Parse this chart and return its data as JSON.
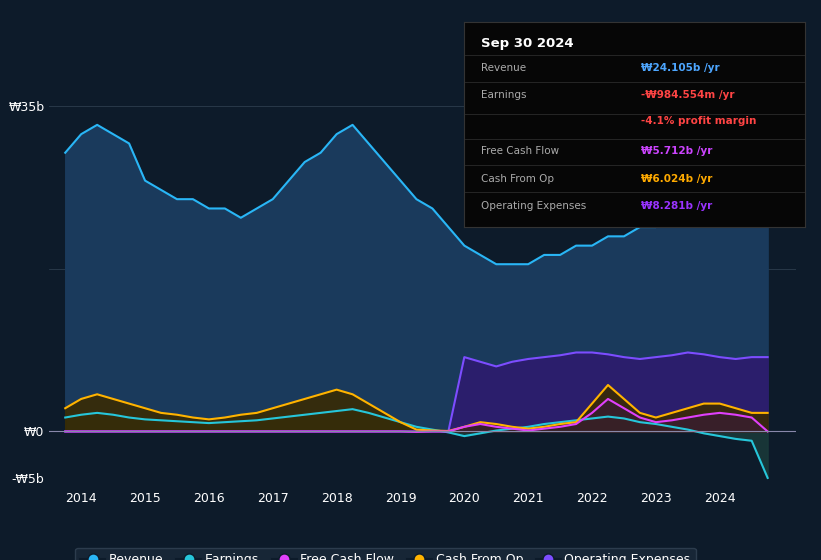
{
  "bg_color": "#0d1b2a",
  "plot_bg_color": "#0d1b2a",
  "info_box": {
    "title": "Sep 30 2024",
    "rows": [
      {
        "label": "Revenue",
        "value": "₩24.105b /yr",
        "value_color": "#4da6ff"
      },
      {
        "label": "Earnings",
        "value": "-₩984.554m /yr",
        "value_color": "#ff4444"
      },
      {
        "label": "",
        "value": "-4.1% profit margin",
        "value_color": "#ff4444"
      },
      {
        "label": "Free Cash Flow",
        "value": "₩5.712b /yr",
        "value_color": "#cc44ff"
      },
      {
        "label": "Cash From Op",
        "value": "₩6.024b /yr",
        "value_color": "#ffaa00"
      },
      {
        "label": "Operating Expenses",
        "value": "₩8.281b /yr",
        "value_color": "#9933ff"
      }
    ]
  },
  "ylim": [
    -6000000000.0,
    38000000000.0
  ],
  "ytick_labels": [
    "₩0",
    "₩35b",
    "-₩5b"
  ],
  "ytick_values": [
    0,
    35000000000.0,
    -5000000000.0
  ],
  "xlim_start": 2013.5,
  "xlim_end": 2025.2,
  "xtick_years": [
    2014,
    2015,
    2016,
    2017,
    2018,
    2019,
    2020,
    2021,
    2022,
    2023,
    2024
  ],
  "revenue_color": "#29b6f6",
  "revenue_fill": "#1a3a5c",
  "earnings_color": "#26c6da",
  "earnings_fill": "#1a3a3a",
  "fcf_color": "#e040fb",
  "fcf_fill": "#3a1a3a",
  "cashfromop_color": "#ffb300",
  "cashfromop_fill": "#3a2a00",
  "opex_color": "#7c4dff",
  "opex_fill": "#2d1b6e",
  "legend_items": [
    {
      "label": "Revenue",
      "color": "#29b6f6"
    },
    {
      "label": "Earnings",
      "color": "#26c6da"
    },
    {
      "label": "Free Cash Flow",
      "color": "#e040fb"
    },
    {
      "label": "Cash From Op",
      "color": "#ffb300"
    },
    {
      "label": "Operating Expenses",
      "color": "#7c4dff"
    }
  ],
  "revenue": {
    "x": [
      2013.75,
      2014.0,
      2014.25,
      2014.5,
      2014.75,
      2015.0,
      2015.25,
      2015.5,
      2015.75,
      2016.0,
      2016.25,
      2016.5,
      2016.75,
      2017.0,
      2017.25,
      2017.5,
      2017.75,
      2018.0,
      2018.25,
      2018.5,
      2018.75,
      2019.0,
      2019.25,
      2019.5,
      2019.75,
      2020.0,
      2020.25,
      2020.5,
      2020.75,
      2021.0,
      2021.25,
      2021.5,
      2021.75,
      2022.0,
      2022.25,
      2022.5,
      2022.75,
      2023.0,
      2023.25,
      2023.5,
      2023.75,
      2024.0,
      2024.25,
      2024.5,
      2024.75
    ],
    "y": [
      30000000000.0,
      32000000000.0,
      33000000000.0,
      32000000000.0,
      31000000000.0,
      27000000000.0,
      26000000000.0,
      25000000000.0,
      25000000000.0,
      24000000000.0,
      24000000000.0,
      23000000000.0,
      24000000000.0,
      25000000000.0,
      27000000000.0,
      29000000000.0,
      30000000000.0,
      32000000000.0,
      33000000000.0,
      31000000000.0,
      29000000000.0,
      27000000000.0,
      25000000000.0,
      24000000000.0,
      22000000000.0,
      20000000000.0,
      19000000000.0,
      18000000000.0,
      18000000000.0,
      18000000000.0,
      19000000000.0,
      19000000000.0,
      20000000000.0,
      20000000000.0,
      21000000000.0,
      21000000000.0,
      22000000000.0,
      22000000000.0,
      23000000000.0,
      23000000000.0,
      24000000000.0,
      24000000000.0,
      23000000000.0,
      24000000000.0,
      24000000000.0
    ]
  },
  "earnings": {
    "x": [
      2013.75,
      2014.0,
      2014.25,
      2014.5,
      2014.75,
      2015.0,
      2015.25,
      2015.5,
      2015.75,
      2016.0,
      2016.25,
      2016.5,
      2016.75,
      2017.0,
      2017.25,
      2017.5,
      2017.75,
      2018.0,
      2018.25,
      2018.5,
      2018.75,
      2019.0,
      2019.25,
      2019.5,
      2019.75,
      2020.0,
      2020.25,
      2020.5,
      2020.75,
      2021.0,
      2021.25,
      2021.5,
      2021.75,
      2022.0,
      2022.25,
      2022.5,
      2022.75,
      2023.0,
      2023.25,
      2023.5,
      2023.75,
      2024.0,
      2024.25,
      2024.5,
      2024.75
    ],
    "y": [
      1500000000.0,
      1800000000.0,
      2000000000.0,
      1800000000.0,
      1500000000.0,
      1300000000.0,
      1200000000.0,
      1100000000.0,
      1000000000.0,
      900000000.0,
      1000000000.0,
      1100000000.0,
      1200000000.0,
      1400000000.0,
      1600000000.0,
      1800000000.0,
      2000000000.0,
      2200000000.0,
      2400000000.0,
      2000000000.0,
      1500000000.0,
      1000000000.0,
      500000000.0,
      200000000.0,
      -100000000.0,
      -500000000.0,
      -200000000.0,
      100000000.0,
      300000000.0,
      500000000.0,
      800000000.0,
      1000000000.0,
      1200000000.0,
      1400000000.0,
      1600000000.0,
      1400000000.0,
      1000000000.0,
      800000000.0,
      500000000.0,
      200000000.0,
      -200000000.0,
      -500000000.0,
      -800000000.0,
      -1000000000.0,
      -5000000000.0
    ]
  },
  "fcf": {
    "x": [
      2013.75,
      2014.0,
      2014.25,
      2014.5,
      2014.75,
      2015.0,
      2015.25,
      2015.5,
      2015.75,
      2016.0,
      2016.25,
      2016.5,
      2016.75,
      2017.0,
      2017.25,
      2017.5,
      2017.75,
      2018.0,
      2018.25,
      2018.5,
      2018.75,
      2019.0,
      2019.25,
      2019.5,
      2019.75,
      2020.0,
      2020.25,
      2020.5,
      2020.75,
      2021.0,
      2021.25,
      2021.5,
      2021.75,
      2022.0,
      2022.25,
      2022.5,
      2022.75,
      2023.0,
      2023.25,
      2023.5,
      2023.75,
      2024.0,
      2024.25,
      2024.5,
      2024.75
    ],
    "y": [
      0.0,
      0.0,
      0.0,
      0.0,
      0.0,
      0.0,
      0.0,
      0.0,
      0.0,
      0.0,
      0.0,
      0.0,
      0.0,
      0.0,
      0.0,
      0.0,
      0.0,
      0.0,
      0.0,
      0.0,
      0.0,
      0.0,
      -50000000.0,
      0.0,
      0.0,
      500000000.0,
      800000000.0,
      500000000.0,
      300000000.0,
      100000000.0,
      300000000.0,
      500000000.0,
      800000000.0,
      2000000000.0,
      3500000000.0,
      2500000000.0,
      1500000000.0,
      1000000000.0,
      1200000000.0,
      1500000000.0,
      1800000000.0,
      2000000000.0,
      1800000000.0,
      1500000000.0,
      0.0
    ]
  },
  "cashfromop": {
    "x": [
      2013.75,
      2014.0,
      2014.25,
      2014.5,
      2014.75,
      2015.0,
      2015.25,
      2015.5,
      2015.75,
      2016.0,
      2016.25,
      2016.5,
      2016.75,
      2017.0,
      2017.25,
      2017.5,
      2017.75,
      2018.0,
      2018.25,
      2018.5,
      2018.75,
      2019.0,
      2019.25,
      2019.5,
      2019.75,
      2020.0,
      2020.25,
      2020.5,
      2020.75,
      2021.0,
      2021.25,
      2021.5,
      2021.75,
      2022.0,
      2022.25,
      2022.5,
      2022.75,
      2023.0,
      2023.25,
      2023.5,
      2023.75,
      2024.0,
      2024.25,
      2024.5,
      2024.75
    ],
    "y": [
      2500000000.0,
      3500000000.0,
      4000000000.0,
      3500000000.0,
      3000000000.0,
      2500000000.0,
      2000000000.0,
      1800000000.0,
      1500000000.0,
      1300000000.0,
      1500000000.0,
      1800000000.0,
      2000000000.0,
      2500000000.0,
      3000000000.0,
      3500000000.0,
      4000000000.0,
      4500000000.0,
      4000000000.0,
      3000000000.0,
      2000000000.0,
      1000000000.0,
      200000000.0,
      100000000.0,
      50000000.0,
      500000000.0,
      1000000000.0,
      800000000.0,
      500000000.0,
      300000000.0,
      500000000.0,
      800000000.0,
      1000000000.0,
      3000000000.0,
      5000000000.0,
      3500000000.0,
      2000000000.0,
      1500000000.0,
      2000000000.0,
      2500000000.0,
      3000000000.0,
      3000000000.0,
      2500000000.0,
      2000000000.0,
      2000000000.0
    ]
  },
  "opex": {
    "x": [
      2013.75,
      2014.0,
      2014.25,
      2014.5,
      2014.75,
      2015.0,
      2015.25,
      2015.5,
      2015.75,
      2016.0,
      2016.25,
      2016.5,
      2016.75,
      2017.0,
      2017.25,
      2017.5,
      2017.75,
      2018.0,
      2018.25,
      2018.5,
      2018.75,
      2019.0,
      2019.25,
      2019.5,
      2019.75,
      2020.0,
      2020.25,
      2020.5,
      2020.75,
      2021.0,
      2021.25,
      2021.5,
      2021.75,
      2022.0,
      2022.25,
      2022.5,
      2022.75,
      2023.0,
      2023.25,
      2023.5,
      2023.75,
      2024.0,
      2024.25,
      2024.5,
      2024.75
    ],
    "y": [
      0.0,
      0.0,
      0.0,
      0.0,
      0.0,
      0.0,
      0.0,
      0.0,
      0.0,
      0.0,
      0.0,
      0.0,
      0.0,
      0.0,
      0.0,
      0.0,
      0.0,
      0.0,
      0.0,
      0.0,
      0.0,
      0.0,
      0.0,
      0.0,
      0.0,
      8000000000.0,
      7500000000.0,
      7000000000.0,
      7500000000.0,
      7800000000.0,
      8000000000.0,
      8200000000.0,
      8500000000.0,
      8500000000.0,
      8300000000.0,
      8000000000.0,
      7800000000.0,
      8000000000.0,
      8200000000.0,
      8500000000.0,
      8300000000.0,
      8000000000.0,
      7800000000.0,
      8000000000.0,
      8000000000.0
    ]
  }
}
